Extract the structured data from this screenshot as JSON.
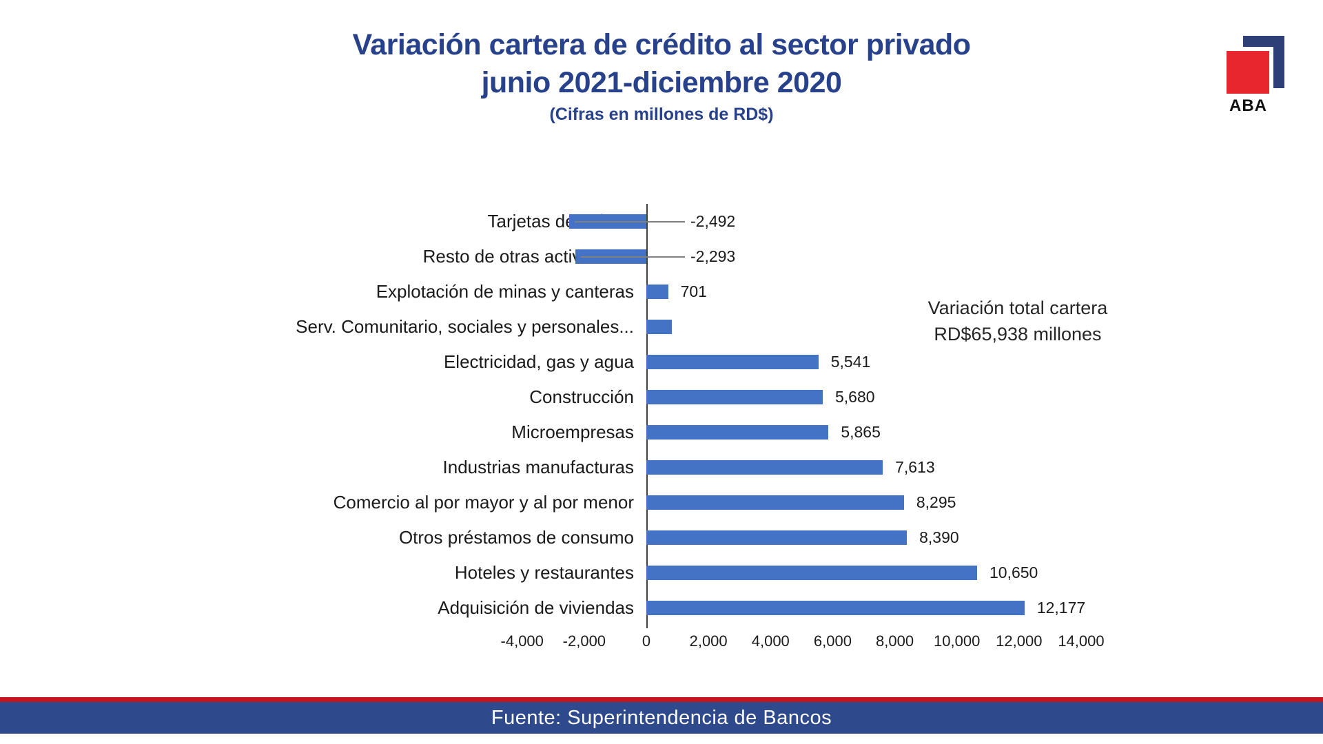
{
  "header": {
    "title_line1": "Variación cartera de crédito al sector privado",
    "title_line2": "junio 2021-diciembre 2020",
    "subtitle": "(Cifras en millones de RD$)"
  },
  "logo": {
    "text": "ABA",
    "square_color": "#E8262D",
    "corner_color": "#2E3E77"
  },
  "annotation": {
    "line1": "Variación total cartera",
    "line2": "RD$65,938 millones"
  },
  "footer": {
    "source": "Fuente: Superintendencia de Bancos",
    "band_color": "#2E4A8C",
    "stripe_color": "#C4161C"
  },
  "brand_colors": {
    "title_blue": "#27418B",
    "bar_blue": "#4472C4"
  },
  "chart_data": {
    "type": "bar",
    "orientation": "horizontal",
    "title": "Variación cartera de crédito al sector privado junio 2021-diciembre 2020",
    "unit": "Cifras en millones de RD$",
    "categories": [
      "Tarjetas de crédito",
      "Resto de otras actividades",
      "Explotación de minas y canteras",
      "Serv. Comunitario, sociales y personales...",
      "Electricidad, gas y agua",
      "Construcción",
      "Microempresas",
      "Industrias manufacturas",
      "Comercio al por mayor y al por menor",
      "Otros préstamos de consumo",
      "Hoteles y restaurantes",
      "Adquisición de viviendas"
    ],
    "values": [
      -2492,
      -2293,
      701,
      820,
      5541,
      5680,
      5865,
      7613,
      8295,
      8390,
      10650,
      12177
    ],
    "data_labels": [
      "-2,492",
      "-2,293",
      "701",
      "",
      "5,541",
      "5,680",
      "5,865",
      "7,613",
      "8,295",
      "8,390",
      "10,650",
      "12,177"
    ],
    "x_ticks": [
      -4000,
      -2000,
      0,
      2000,
      4000,
      6000,
      8000,
      10000,
      12000,
      14000
    ],
    "x_tick_labels": [
      "-4,000",
      "-2,000",
      "0",
      "2,000",
      "4,000",
      "6,000",
      "8,000",
      "10,000",
      "12,000",
      "14,000"
    ],
    "xlim": [
      -4000,
      14000
    ],
    "grid": false,
    "legend": false,
    "bar_color": "#4472C4",
    "total_annotation": "Variación total cartera RD$65,938 millones"
  }
}
